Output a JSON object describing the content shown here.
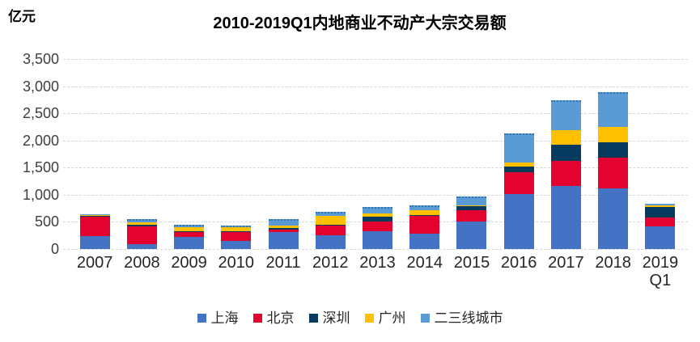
{
  "unit_label": "亿元",
  "title": "2010-2019Q1内地商业不动产大宗交易额",
  "chart_data": {
    "type": "bar",
    "stacked": true,
    "title": "2010-2019Q1内地商业不动产大宗交易额",
    "ylabel": "亿元",
    "xlabel": "",
    "ylim": [
      0,
      3500
    ],
    "ytick_interval": 500,
    "yticks": [
      "0",
      "500",
      "1,000",
      "1,500",
      "2,000",
      "2,500",
      "3,000",
      "3,500"
    ],
    "grid": true,
    "legend_position": "bottom",
    "categories": [
      "2007",
      "2008",
      "2009",
      "2010",
      "2011",
      "2012",
      "2013",
      "2014",
      "2015",
      "2016",
      "2017",
      "2018",
      "2019\nQ1"
    ],
    "series": [
      {
        "name": "上海",
        "color": "#4472C4",
        "values": [
          240,
          95,
          220,
          145,
          310,
          255,
          325,
          290,
          500,
          1020,
          1160,
          1120,
          420
        ]
      },
      {
        "name": "北京",
        "color": "#E4032E",
        "values": [
          360,
          320,
          100,
          170,
          45,
          180,
          185,
          315,
          215,
          390,
          460,
          560,
          160
        ]
      },
      {
        "name": "深圳",
        "color": "#063A5F",
        "values": [
          5,
          30,
          10,
          15,
          25,
          5,
          85,
          25,
          75,
          110,
          300,
          290,
          190
        ]
      },
      {
        "name": "广州",
        "color": "#FFC000",
        "values": [
          30,
          40,
          70,
          65,
          45,
          170,
          65,
          85,
          10,
          80,
          270,
          275,
          40
        ]
      },
      {
        "name": "二三线城市",
        "color": "#5B9BD5",
        "dashed_edge": true,
        "edge_color": "#2E75B6",
        "values": [
          10,
          65,
          45,
          40,
          125,
          70,
          115,
          85,
          170,
          530,
          550,
          645,
          25
        ]
      }
    ],
    "totals": [
      645,
      550,
      445,
      435,
      550,
      680,
      775,
      800,
      970,
      2130,
      2740,
      2890,
      835
    ]
  }
}
